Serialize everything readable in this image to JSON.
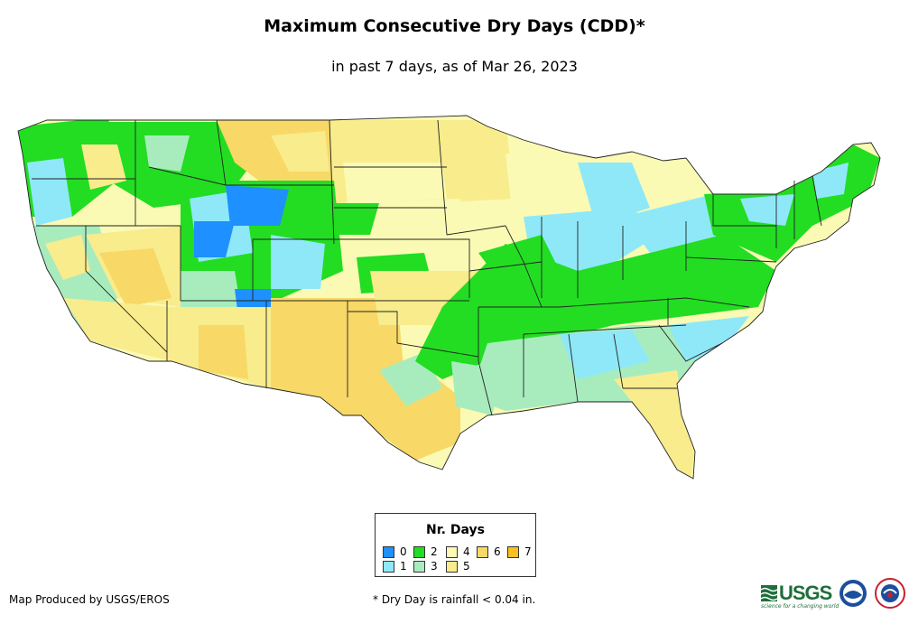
{
  "title": "Maximum Consecutive Dry Days (CDD)*",
  "subtitle": "in past 7 days, as of Mar 26, 2023",
  "legend": {
    "title": "Nr. Days",
    "items": [
      {
        "label": "0",
        "color": "#1e90ff"
      },
      {
        "label": "1",
        "color": "#8fe8f8"
      },
      {
        "label": "2",
        "color": "#22dd22"
      },
      {
        "label": "3",
        "color": "#a8ecbe"
      },
      {
        "label": "4",
        "color": "#fafab4"
      },
      {
        "label": "5",
        "color": "#f8ec8c"
      },
      {
        "label": "6",
        "color": "#f8d866"
      },
      {
        "label": "7",
        "color": "#f8c020"
      }
    ]
  },
  "footer": {
    "producer": "Map Produced by USGS/EROS",
    "note": "* Dry Day is rainfall < 0.04 in."
  },
  "logos": {
    "usgs_text": "USGS",
    "usgs_tagline": "science for a changing world"
  }
}
